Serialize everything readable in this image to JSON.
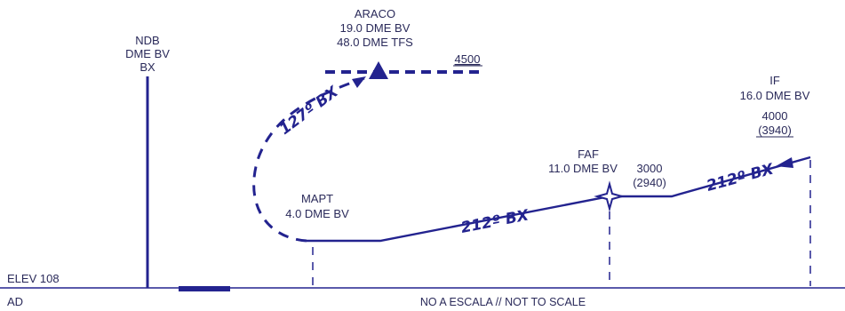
{
  "fixes": {
    "ndb": {
      "line1": "NDB",
      "line2": "DME BV",
      "line3": "BX"
    },
    "araco": {
      "name": "ARACO",
      "dme1": "19.0 DME BV",
      "dme2": "48.0 DME TFS",
      "altitude": "4500"
    },
    "if": {
      "name": "IF",
      "dme": "16.0 DME BV",
      "altitude": "4000",
      "altitude_agl": "(3940)"
    },
    "faf": {
      "name": "FAF",
      "dme": "11.0 DME BV",
      "altitude": "3000",
      "altitude_agl": "(2940)"
    },
    "mapt": {
      "name": "MAPT",
      "dme": "4.0 DME BV"
    }
  },
  "tracks": {
    "outbound_missed": "127º BX",
    "final_segment": "212º BX",
    "intermediate": "212º BX"
  },
  "aerodrome": {
    "elevation": "ELEV 108",
    "label": "AD"
  },
  "scale_note": "NO A ESCALA // NOT TO SCALE",
  "colors": {
    "route": "#23238f",
    "text": "#2a2a5a",
    "ground": "#23238f"
  }
}
